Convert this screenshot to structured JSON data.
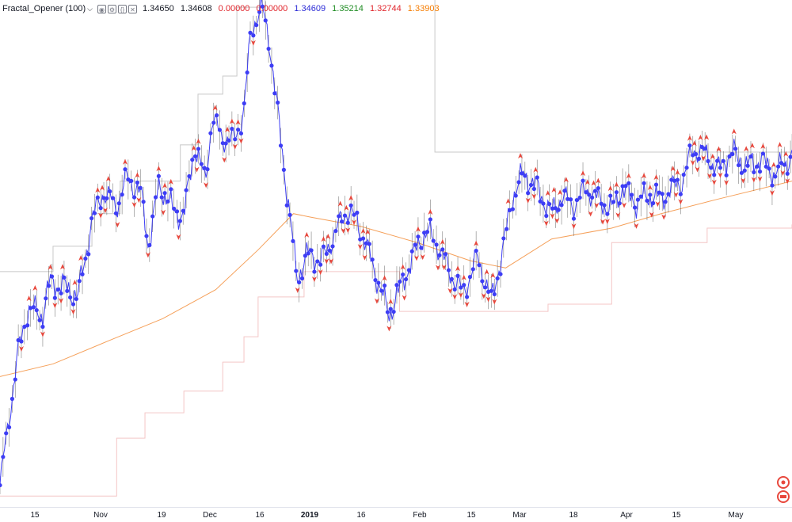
{
  "legend": {
    "name": "Fractal_Opener (100)",
    "values": [
      "1.34650",
      "1.34608",
      "0.00000",
      "0.00000",
      "1.34609",
      "1.35214",
      "1.32744",
      "1.33903"
    ],
    "value_colors": [
      "#131722",
      "#131722",
      "#e0242b",
      "#e0242b",
      "#2b2bd6",
      "#1e8c22",
      "#e0242b",
      "#f57c00"
    ],
    "buttons": [
      "eye-icon",
      "gear-icon",
      "source-icon",
      "close-icon"
    ]
  },
  "colors": {
    "price": "#3d3df5",
    "sma": "#f5a05a",
    "upper": "#c8c8c8",
    "lower": "#f4c6c6",
    "fractal": "#e8473c",
    "candle": "#4a4a4a"
  },
  "chart_data": {
    "type": "line",
    "title": "Fractal_Opener (100)",
    "x_ticks": [
      "15",
      "Nov",
      "19",
      "Dec",
      "16",
      "2019",
      "16",
      "Feb",
      "15",
      "Mar",
      "18",
      "Apr",
      "15",
      "May"
    ],
    "bold_ticks": [
      "2019"
    ],
    "ylim": [
      1.2,
      1.34
    ],
    "x_range": [
      "2018-10-10",
      "2019-05-22"
    ],
    "series": [
      {
        "name": "",
        "color": "#3d3df5",
        "x": [
          "2018-10-10",
          "2018-10-15",
          "2018-10-18",
          "2018-10-22",
          "2018-10-24",
          "2018-10-28",
          "2018-11-01",
          "2018-11-05",
          "2018-11-08",
          "2018-11-12",
          "2018-11-15",
          "2018-11-19",
          "2018-11-21",
          "2018-11-24",
          "2018-11-28",
          "2018-12-01",
          "2018-12-04",
          "2018-12-07",
          "2018-12-09",
          "2018-12-12",
          "2018-12-15",
          "2018-12-18",
          "2018-12-20",
          "2018-12-23",
          "2018-12-25",
          "2018-12-28",
          "2018-12-31",
          "2019-01-02",
          "2019-01-05",
          "2019-01-09",
          "2019-01-13",
          "2019-01-16",
          "2019-01-19",
          "2019-01-22",
          "2019-01-25",
          "2019-01-28",
          "2019-01-31",
          "2019-02-03",
          "2019-02-06",
          "2019-02-08",
          "2019-02-11",
          "2019-02-14",
          "2019-02-18",
          "2019-02-22",
          "2019-02-26",
          "2019-03-01",
          "2019-03-04",
          "2019-03-07",
          "2019-03-11",
          "2019-03-15",
          "2019-03-18",
          "2019-03-21",
          "2019-03-25",
          "2019-03-28",
          "2019-04-01",
          "2019-04-04",
          "2019-04-08",
          "2019-04-12",
          "2019-04-15",
          "2019-04-18",
          "2019-04-21",
          "2019-04-24",
          "2019-04-28",
          "2019-05-01",
          "2019-05-05",
          "2019-05-09",
          "2019-05-13",
          "2019-05-17",
          "2019-05-22"
        ],
        "values": [
          1.206,
          1.242,
          1.255,
          1.253,
          1.262,
          1.261,
          1.258,
          1.279,
          1.287,
          1.283,
          1.291,
          1.286,
          1.272,
          1.289,
          1.282,
          1.28,
          1.3,
          1.29,
          1.307,
          1.302,
          1.301,
          1.309,
          1.332,
          1.338,
          1.33,
          1.305,
          1.28,
          1.263,
          1.27,
          1.268,
          1.276,
          1.282,
          1.279,
          1.271,
          1.262,
          1.253,
          1.26,
          1.267,
          1.274,
          1.276,
          1.272,
          1.265,
          1.259,
          1.269,
          1.257,
          1.27,
          1.286,
          1.292,
          1.288,
          1.281,
          1.286,
          1.283,
          1.288,
          1.285,
          1.282,
          1.288,
          1.284,
          1.286,
          1.285,
          1.288,
          1.29,
          1.299,
          1.297,
          1.293,
          1.298,
          1.294,
          1.296,
          1.292,
          1.297
        ]
      },
      {
        "name": "",
        "color": "#f5a05a",
        "x": [
          "2018-10-10",
          "2018-10-25",
          "2018-11-10",
          "2018-11-25",
          "2018-12-10",
          "2018-12-22",
          "2019-01-01",
          "2019-01-06",
          "2019-01-20",
          "2019-02-05",
          "2019-02-20",
          "2019-03-02",
          "2019-03-15",
          "2019-04-01",
          "2019-04-15",
          "2019-05-01",
          "2019-05-22"
        ],
        "values": [
          1.236,
          1.2395,
          1.246,
          1.252,
          1.26,
          1.271,
          1.281,
          1.28,
          1.2775,
          1.273,
          1.268,
          1.266,
          1.274,
          1.277,
          1.281,
          1.285,
          1.29
        ]
      },
      {
        "name": "",
        "color": "#c8c8c8",
        "x": [
          "2018-10-10",
          "2018-10-16",
          "2018-10-25",
          "2018-11-05",
          "2018-11-13",
          "2018-11-30",
          "2018-12-05",
          "2018-12-12",
          "2018-12-16",
          "2018-12-24",
          "2019-02-09",
          "2019-02-10",
          "2019-05-22"
        ],
        "values": [
          1.265,
          1.265,
          1.272,
          1.281,
          1.29,
          1.3,
          1.314,
          1.319,
          1.338,
          1.342,
          1.342,
          1.298,
          1.303
        ]
      },
      {
        "name": "",
        "color": "#f4c6c6",
        "x": [
          "2018-10-10",
          "2018-11-05",
          "2018-11-12",
          "2018-11-20",
          "2018-12-01",
          "2018-12-12",
          "2018-12-18",
          "2018-12-22",
          "2019-01-04",
          "2019-01-15",
          "2019-01-31",
          "2019-03-10",
          "2019-03-14",
          "2019-04-01",
          "2019-04-28",
          "2019-05-22"
        ],
        "values": [
          1.203,
          1.203,
          1.219,
          1.226,
          1.232,
          1.24,
          1.247,
          1.258,
          1.265,
          1.265,
          1.254,
          1.254,
          1.256,
          1.273,
          1.277,
          1.278
        ]
      }
    ]
  }
}
